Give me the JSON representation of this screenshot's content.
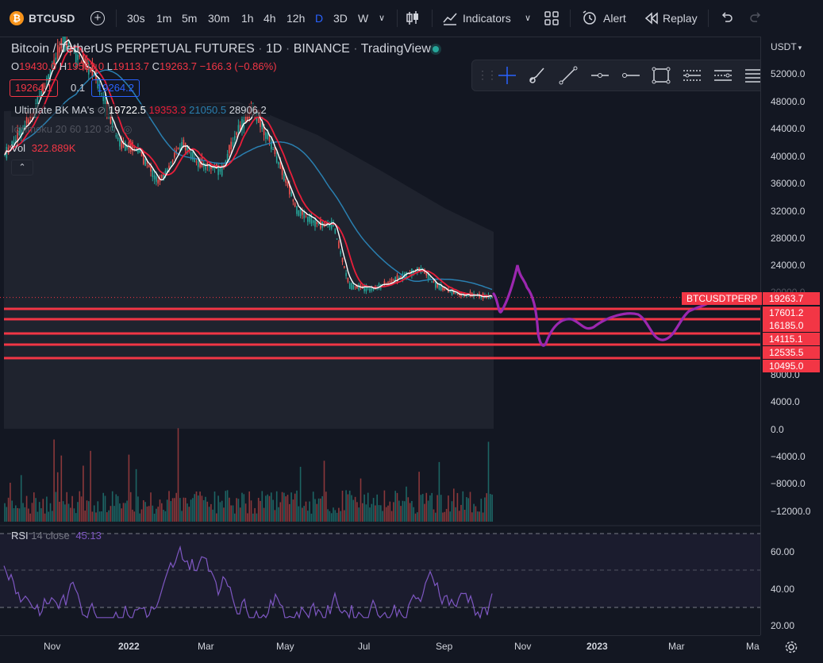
{
  "toolbar": {
    "symbol": "BTCUSD",
    "intervals": [
      "30s",
      "1m",
      "5m",
      "30m",
      "1h",
      "4h",
      "12h",
      "D",
      "3D",
      "W"
    ],
    "active_interval": "D",
    "indicators_label": "Indicators",
    "alert_label": "Alert",
    "replay_label": "Replay"
  },
  "legend": {
    "title": "Bitcoin / TetherUS PERPETUAL FUTURES",
    "interval": "1D",
    "exchange": "BINANCE",
    "source": "TradingView",
    "ohlc": {
      "o_label": "O",
      "o": "19430.0",
      "h_label": "H",
      "h": "19563.0",
      "l_label": "L",
      "l": "19113.7",
      "c_label": "C",
      "c": "19263.7",
      "change": "−166.3 (−0.86%)"
    },
    "sell_price": "19264.1",
    "spread": "0.1",
    "buy_price": "19264.2",
    "ma_name": "Ultimate BK MA's",
    "ma_values": [
      "19722.5",
      "19353.3",
      "21050.5",
      "28906.2"
    ],
    "ichimoku": "Ichimoku 20 60 120 30",
    "vol_label": "Vol",
    "vol_value": "322.889K"
  },
  "price_axis": {
    "currency": "USDT",
    "ticks": [
      "52000.0",
      "48000.0",
      "44000.0",
      "40000.0",
      "36000.0",
      "32000.0",
      "28000.0",
      "24000.0",
      "20000.0",
      "8000.0",
      "4000.0",
      "0.0",
      "−4000.0",
      "−8000.0",
      "−12000.0"
    ],
    "rsi_ticks": [
      "60.00",
      "40.00",
      "20.00"
    ],
    "tags": [
      {
        "label": "19263.7",
        "color": "#f23645"
      },
      {
        "label": "17601.2",
        "color": "#f23645"
      },
      {
        "label": "16185.0",
        "color": "#f23645"
      },
      {
        "label": "14115.1",
        "color": "#f23645"
      },
      {
        "label": "12535.5",
        "color": "#f23645"
      },
      {
        "label": "10495.0",
        "color": "#f23645"
      }
    ],
    "symbol_tag": "BTCUSDTPERP"
  },
  "time_axis": {
    "labels": [
      "Nov",
      "2022",
      "Mar",
      "May",
      "Jul",
      "Sep",
      "Nov",
      "2023",
      "Mar",
      "Ma"
    ]
  },
  "rsi": {
    "label": "RSI",
    "params": "14 close",
    "value": "45.13"
  },
  "support_levels": [
    17601.2,
    16185.0,
    14115.1,
    12535.5,
    10495.0
  ],
  "colors": {
    "background": "#131722",
    "up": "#26a69a",
    "down": "#ef5350",
    "accent": "#2962ff",
    "level": "#f23645",
    "projection": "#9c27b0",
    "rsi": "#7e57c2",
    "ma_red": "#e91e3a",
    "ma_blue": "#2a7fb0",
    "ma_white": "#ffffff"
  },
  "icons": [
    "search-icon",
    "add-icon",
    "candles-icon",
    "indicators-icon",
    "layout-icon",
    "alert-icon",
    "replay-icon",
    "undo-icon",
    "redo-icon",
    "crosshair-icon",
    "brush-icon",
    "trendline-icon",
    "horizontal-line-icon",
    "horizontal-ray-icon",
    "rectangle-icon",
    "long-position-icon",
    "short-position-icon",
    "menu-icon",
    "settings-icon"
  ]
}
